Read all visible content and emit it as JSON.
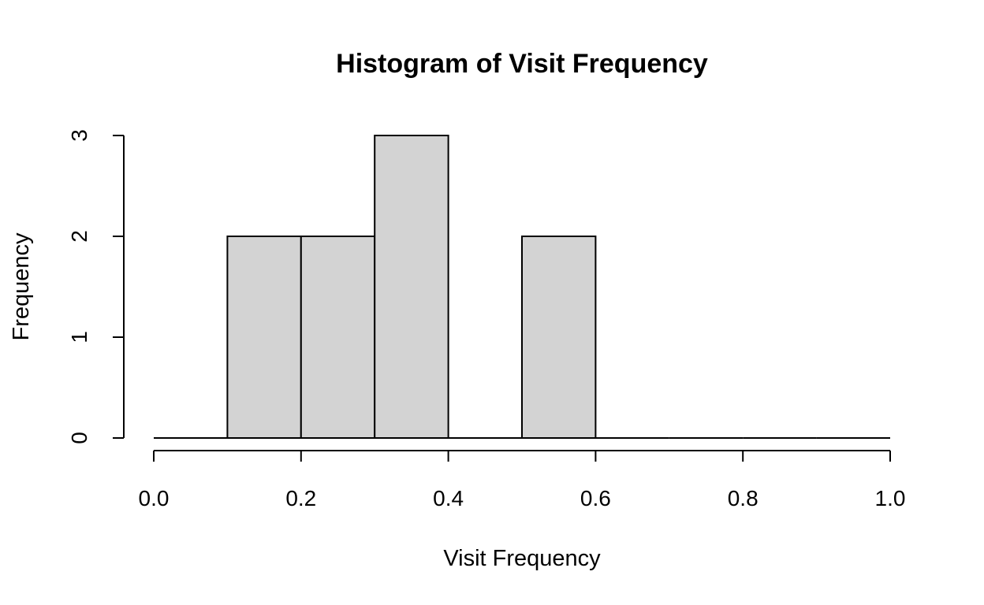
{
  "chart_data": {
    "type": "bar",
    "title": "Histogram of Visit Frequency",
    "xlabel": "Visit Frequency",
    "ylabel": "Frequency",
    "bins": [
      {
        "start": 0.0,
        "end": 0.1,
        "count": 0
      },
      {
        "start": 0.1,
        "end": 0.2,
        "count": 2
      },
      {
        "start": 0.2,
        "end": 0.3,
        "count": 2
      },
      {
        "start": 0.3,
        "end": 0.4,
        "count": 3
      },
      {
        "start": 0.4,
        "end": 0.5,
        "count": 0
      },
      {
        "start": 0.5,
        "end": 0.6,
        "count": 2
      },
      {
        "start": 0.6,
        "end": 0.7,
        "count": 0
      },
      {
        "start": 0.7,
        "end": 0.8,
        "count": 0
      },
      {
        "start": 0.8,
        "end": 0.9,
        "count": 0
      },
      {
        "start": 0.9,
        "end": 1.0,
        "count": 0
      }
    ],
    "xlim": [
      0,
      1
    ],
    "ylim": [
      0,
      3
    ],
    "x_ticks": [
      "0.0",
      "0.2",
      "0.4",
      "0.6",
      "0.8",
      "1.0"
    ],
    "y_ticks": [
      "0",
      "1",
      "2",
      "3"
    ],
    "bar_color": "#d3d3d3",
    "grid": false
  }
}
